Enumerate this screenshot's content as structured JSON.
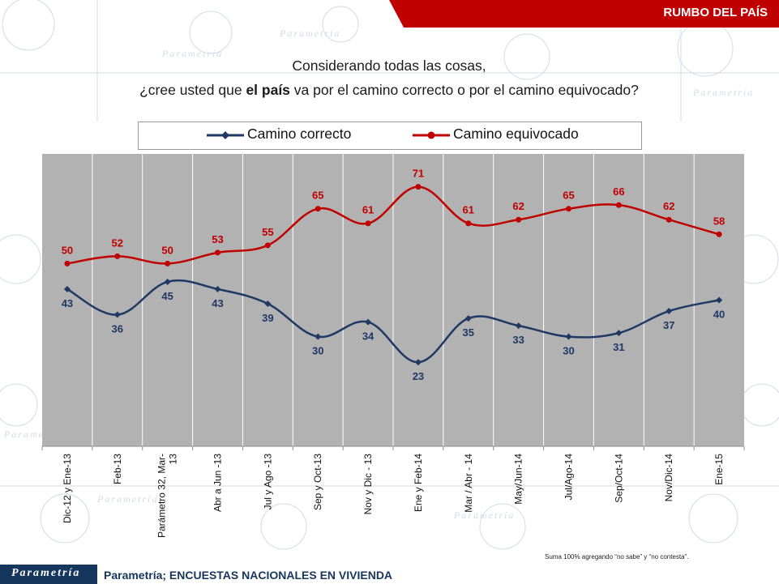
{
  "header": {
    "title": "RUMBO DEL PAÍS"
  },
  "question": {
    "line1": "Considerando todas las cosas,",
    "line2_pre": "¿cree usted que ",
    "line2_bold": "el país",
    "line2_post": " va por el camino correcto o por el camino equivocado?"
  },
  "watermark": {
    "text": "Parametría"
  },
  "footnote": "Suma 100% agregando “no sabe” y “no contesta”.",
  "footer": {
    "logo_text": "Parametría",
    "source": "Parametría; ENCUESTAS NACIONALES EN VIVIENDA"
  },
  "colors": {
    "header": "#c00000",
    "plot_bg": "#b2b2b2",
    "correcto": "#1f3864",
    "equivocado": "#c00000",
    "footer": "#17365d"
  },
  "chart_data": {
    "type": "line",
    "categories": [
      "Dic-12 y Ene-13",
      "Feb-13",
      "Parámetro 32, Mar-13",
      "Abr a Jun -13",
      "Jul y Ago -13",
      "Sep y Oct-13",
      "Nov y Dic - 13",
      "Ene y Feb-14",
      "Mar / Abr - 14",
      "May/Jun-14",
      "Jul/Ago-14",
      "Sep/Oct-14",
      "Nov/Dic-14",
      "Ene-15"
    ],
    "category_lines": [
      [
        "Dic-12 y Ene-13"
      ],
      [
        "Feb-13"
      ],
      [
        "Parámetro 32, Mar-",
        "13"
      ],
      [
        "Abr a Jun -13"
      ],
      [
        "Jul y Ago -13"
      ],
      [
        "Sep y Oct-13"
      ],
      [
        "Nov y Dic - 13"
      ],
      [
        "Ene y Feb-14"
      ],
      [
        "Mar / Abr - 14"
      ],
      [
        "May/Jun-14"
      ],
      [
        "Jul/Ago-14"
      ],
      [
        "Sep/Oct-14"
      ],
      [
        "Nov/Dic-14"
      ],
      [
        "Ene-15"
      ]
    ],
    "series": [
      {
        "name": "Camino correcto",
        "values": [
          43,
          36,
          45,
          43,
          39,
          30,
          34,
          23,
          35,
          33,
          30,
          31,
          37,
          40
        ]
      },
      {
        "name": "Camino equivocado",
        "values": [
          50,
          52,
          50,
          53,
          55,
          65,
          61,
          71,
          61,
          62,
          65,
          66,
          62,
          58
        ]
      }
    ],
    "ylim": [
      0,
      80
    ],
    "grid": "vertical",
    "legend_position": "top",
    "data_labels": true
  }
}
